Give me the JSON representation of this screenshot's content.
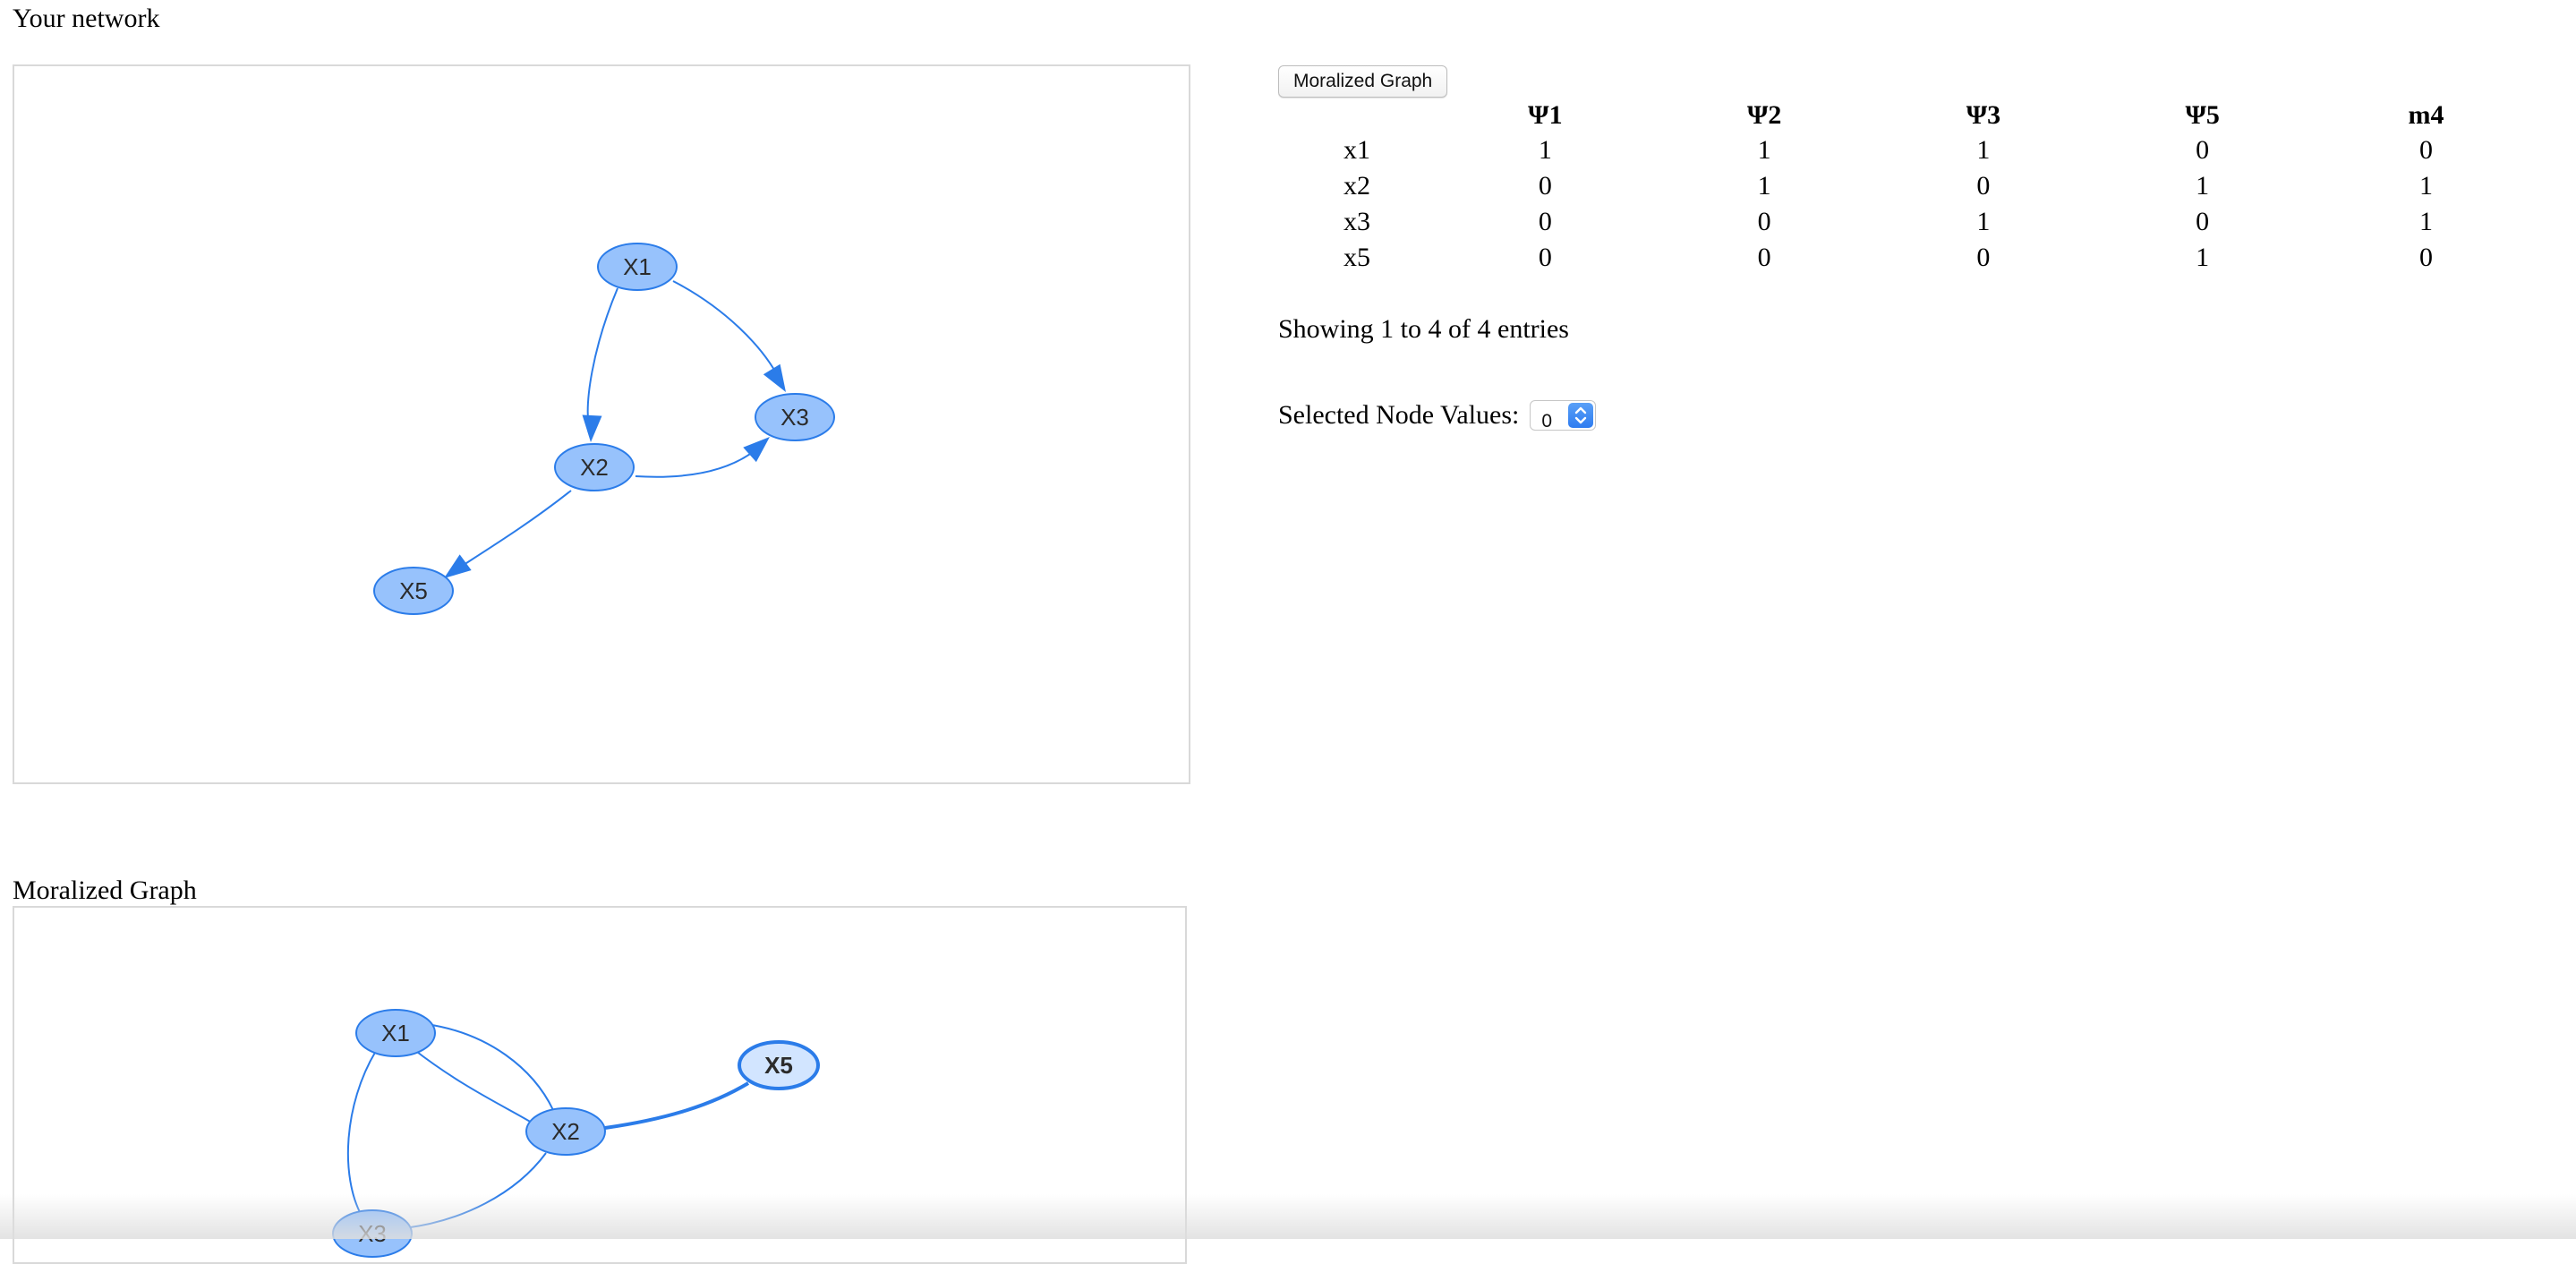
{
  "network": {
    "title": "Your network",
    "nodes": [
      {
        "id": "X1",
        "label": "X1"
      },
      {
        "id": "X2",
        "label": "X2"
      },
      {
        "id": "X3",
        "label": "X3"
      },
      {
        "id": "X5",
        "label": "X5"
      }
    ],
    "edges": [
      {
        "from": "X1",
        "to": "X2",
        "directed": true
      },
      {
        "from": "X1",
        "to": "X3",
        "directed": true
      },
      {
        "from": "X2",
        "to": "X3",
        "directed": true
      },
      {
        "from": "X2",
        "to": "X5",
        "directed": true
      }
    ]
  },
  "moral_graph": {
    "title": "Moralized Graph",
    "nodes": [
      {
        "id": "X1",
        "label": "X1",
        "selected": false
      },
      {
        "id": "X2",
        "label": "X2",
        "selected": false
      },
      {
        "id": "X3",
        "label": "X3",
        "selected": false
      },
      {
        "id": "X5",
        "label": "X5",
        "selected": true
      }
    ],
    "edges": [
      {
        "from": "X1",
        "to": "X2",
        "highlighted": false
      },
      {
        "from": "X1",
        "to": "X2",
        "highlighted": false
      },
      {
        "from": "X1",
        "to": "X3",
        "highlighted": false
      },
      {
        "from": "X2",
        "to": "X3",
        "highlighted": false
      },
      {
        "from": "X2",
        "to": "X5",
        "highlighted": true
      }
    ]
  },
  "controls": {
    "moral_button_label": "Moralized Graph"
  },
  "table": {
    "columns": [
      "",
      "Ψ1",
      "Ψ2",
      "Ψ3",
      "Ψ5",
      "m4"
    ],
    "rows": [
      {
        "name": "x1",
        "values": [
          "1",
          "1",
          "1",
          "0",
          "0"
        ]
      },
      {
        "name": "x2",
        "values": [
          "0",
          "1",
          "0",
          "1",
          "1"
        ]
      },
      {
        "name": "x3",
        "values": [
          "0",
          "0",
          "1",
          "0",
          "1"
        ]
      },
      {
        "name": "x5",
        "values": [
          "0",
          "0",
          "0",
          "1",
          "0"
        ]
      }
    ],
    "info": "Showing 1 to 4 of 4 entries"
  },
  "node_values": {
    "label": "Selected Node Values:",
    "selected": "0"
  },
  "colors": {
    "node_fill": "#97c2fc",
    "node_stroke": "#2b7ce9",
    "edge": "#2b7ce9",
    "selected_fill": "#d2e5ff"
  }
}
